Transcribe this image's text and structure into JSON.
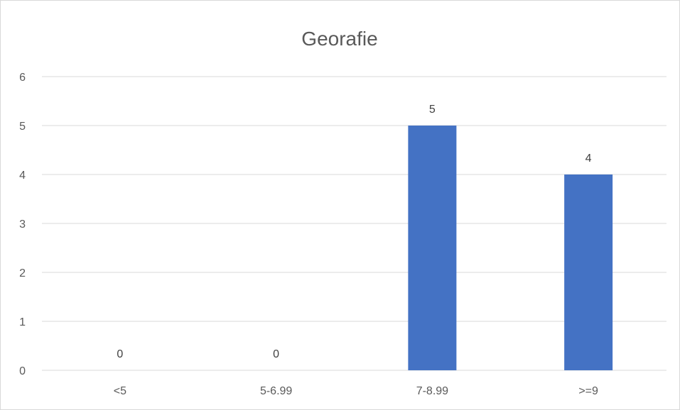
{
  "chart_data": {
    "type": "bar",
    "title": "Georafie",
    "categories": [
      "<5",
      "5-6.99",
      "7-8.99",
      ">=9"
    ],
    "values": [
      0,
      0,
      5,
      4
    ],
    "data_labels": [
      "0",
      "0",
      "5",
      "4"
    ],
    "ylim": [
      0,
      6
    ],
    "yticks": [
      "0",
      "1",
      "2",
      "3",
      "4",
      "5",
      "6"
    ],
    "grid": true,
    "legend": "none",
    "colors": {
      "bar": "#4472C4",
      "grid": "#D9D9D9",
      "text": "#595959"
    }
  }
}
